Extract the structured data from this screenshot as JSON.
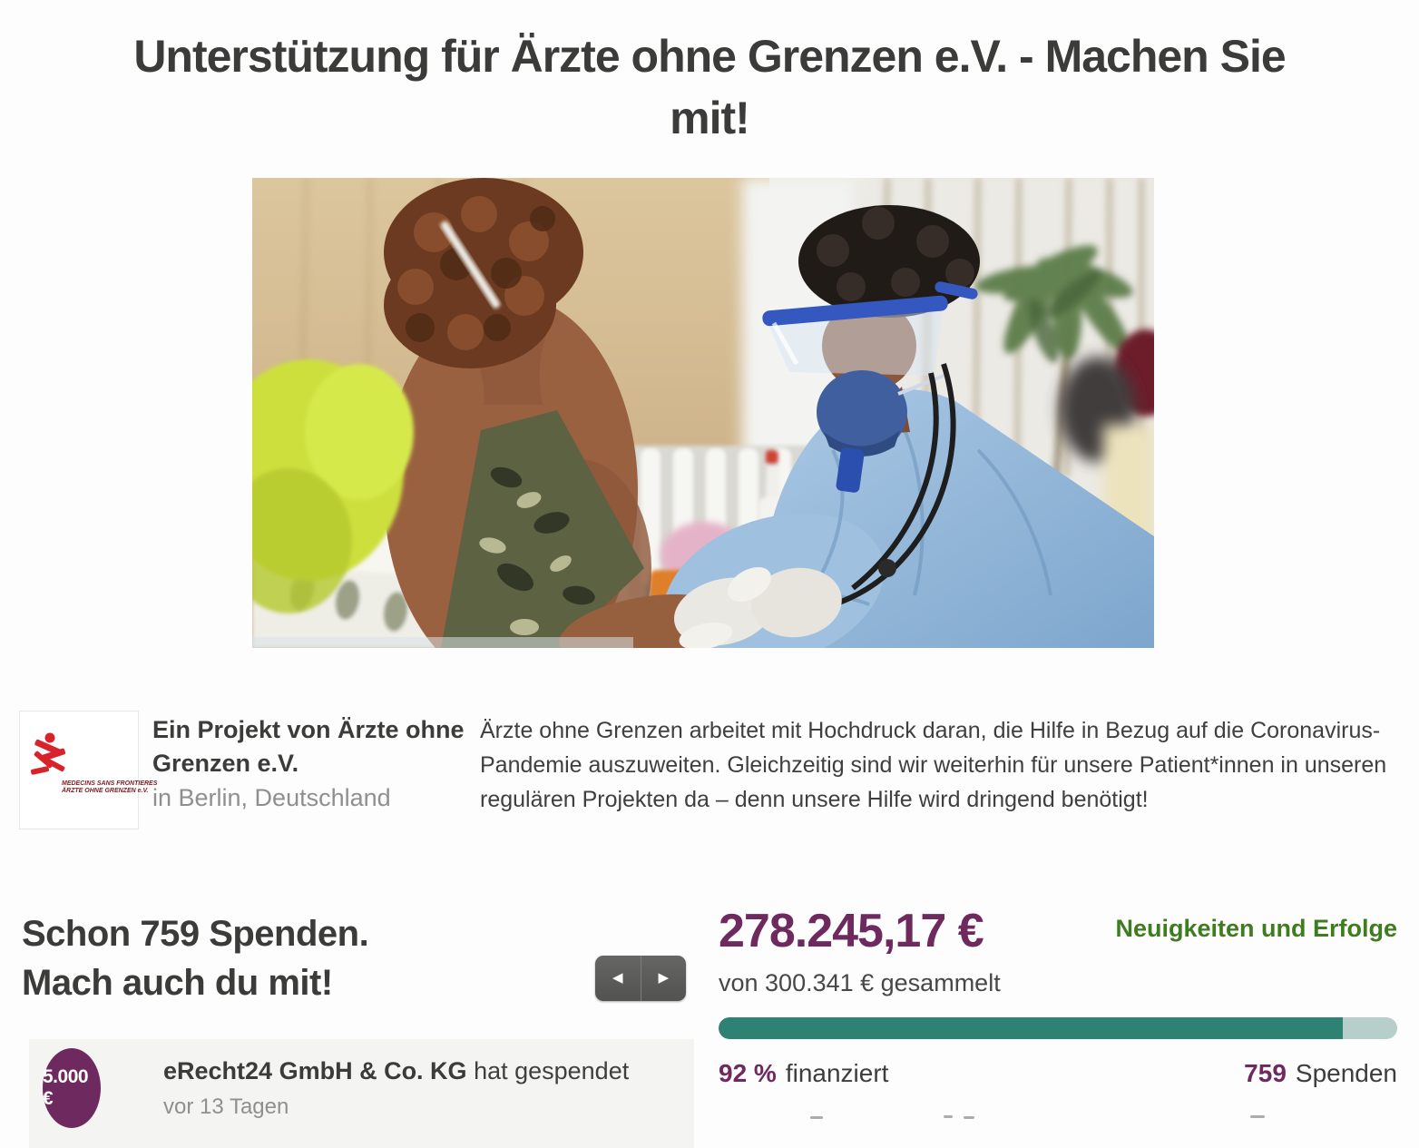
{
  "page": {
    "title_line1": "Unterstützung für Ärzte ohne Grenzen e.V. - Machen Sie",
    "title_line2": "mit!"
  },
  "organization": {
    "logo_text_line1": "MEDECINS SANS FRONTIERES",
    "logo_text_line2": "ÄRZTE OHNE GRENZEN e.V.",
    "project_by": "Ein Projekt von Ärzte ohne Grenzen e.V.",
    "location": "in Berlin, Deutschland"
  },
  "description": "Ärzte ohne Grenzen arbeitet mit Hochdruck daran, die Hilfe in Bezug auf die Coronavirus-Pandemie auszuweiten. Gleichzeitig sind wir weiterhin für unsere Patient*innen in unseren regulären Projekten da – denn unsere Hilfe wird dringend benötigt!",
  "donations_section": {
    "heading_line1": "Schon 759 Spenden.",
    "heading_line2": "Mach auch du mit!",
    "nav": {
      "prev_icon": "◀",
      "next_icon": "▶"
    },
    "latest_donation": {
      "amount": "5.000 €",
      "donor": "eRecht24 GmbH & Co. KG",
      "action": " hat gespendet",
      "time": "vor 13 Tagen"
    }
  },
  "funding": {
    "amount_raised": "278.245,17 €",
    "news_link": "Neuigkeiten und Erfolge",
    "goal_text": "von 300.341 € gesammelt",
    "percent_value": "92 %",
    "percent_label": "finanziert",
    "donations_count": "759",
    "donations_label": "Spenden",
    "progress_percent": 92
  },
  "colors": {
    "purple": "#6e2a5f",
    "green": "#3e7c1f",
    "teal": "#2d8274",
    "teal_light": "#b7cfcb",
    "msf_red": "#d8232a"
  }
}
